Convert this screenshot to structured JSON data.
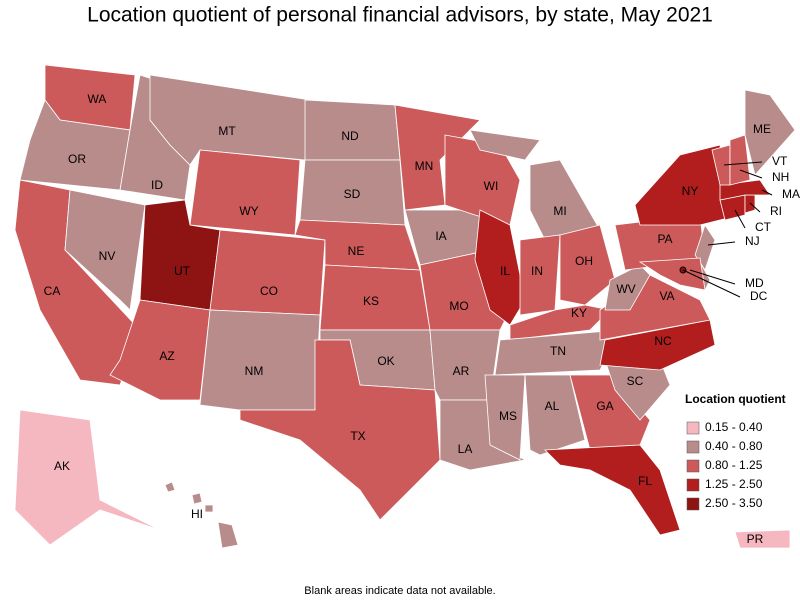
{
  "title": "Location quotient of personal financial advisors, by state, May 2021",
  "legend": {
    "title": "Location quotient",
    "items": [
      {
        "label": "0.15 - 0.40",
        "color": "#f5b7c0"
      },
      {
        "label": "0.40 - 0.80",
        "color": "#b98c8c"
      },
      {
        "label": "0.80 - 1.25",
        "color": "#cd5a5a"
      },
      {
        "label": "1.25 - 2.50",
        "color": "#b21e1e"
      },
      {
        "label": "2.50 - 3.50",
        "color": "#8e1414"
      }
    ]
  },
  "states": [
    {
      "abbr": "WA",
      "color": "#cd5a5a"
    },
    {
      "abbr": "OR",
      "color": "#b98c8c"
    },
    {
      "abbr": "CA",
      "color": "#cd5a5a"
    },
    {
      "abbr": "NV",
      "color": "#b98c8c"
    },
    {
      "abbr": "ID",
      "color": "#b98c8c"
    },
    {
      "abbr": "MT",
      "color": "#b98c8c"
    },
    {
      "abbr": "WY",
      "color": "#cd5a5a"
    },
    {
      "abbr": "UT",
      "color": "#8e1414"
    },
    {
      "abbr": "AZ",
      "color": "#cd5a5a"
    },
    {
      "abbr": "CO",
      "color": "#cd5a5a"
    },
    {
      "abbr": "NM",
      "color": "#b98c8c"
    },
    {
      "abbr": "ND",
      "color": "#b98c8c"
    },
    {
      "abbr": "SD",
      "color": "#b98c8c"
    },
    {
      "abbr": "NE",
      "color": "#cd5a5a"
    },
    {
      "abbr": "KS",
      "color": "#cd5a5a"
    },
    {
      "abbr": "OK",
      "color": "#b98c8c"
    },
    {
      "abbr": "TX",
      "color": "#cd5a5a"
    },
    {
      "abbr": "MN",
      "color": "#cd5a5a"
    },
    {
      "abbr": "IA",
      "color": "#b98c8c"
    },
    {
      "abbr": "MO",
      "color": "#cd5a5a"
    },
    {
      "abbr": "AR",
      "color": "#b98c8c"
    },
    {
      "abbr": "LA",
      "color": "#b98c8c"
    },
    {
      "abbr": "WI",
      "color": "#cd5a5a"
    },
    {
      "abbr": "IL",
      "color": "#b21e1e"
    },
    {
      "abbr": "MI",
      "color": "#b98c8c"
    },
    {
      "abbr": "IN",
      "color": "#cd5a5a"
    },
    {
      "abbr": "OH",
      "color": "#cd5a5a"
    },
    {
      "abbr": "KY",
      "color": "#cd5a5a"
    },
    {
      "abbr": "TN",
      "color": "#b98c8c"
    },
    {
      "abbr": "MS",
      "color": "#b98c8c"
    },
    {
      "abbr": "AL",
      "color": "#b98c8c"
    },
    {
      "abbr": "GA",
      "color": "#cd5a5a"
    },
    {
      "abbr": "FL",
      "color": "#b21e1e"
    },
    {
      "abbr": "SC",
      "color": "#b98c8c"
    },
    {
      "abbr": "NC",
      "color": "#b21e1e"
    },
    {
      "abbr": "VA",
      "color": "#cd5a5a"
    },
    {
      "abbr": "WV",
      "color": "#b98c8c"
    },
    {
      "abbr": "PA",
      "color": "#cd5a5a"
    },
    {
      "abbr": "NY",
      "color": "#b21e1e"
    },
    {
      "abbr": "NJ",
      "color": "#b98c8c"
    },
    {
      "color": "#b98c8c"
    },
    {
      "abbr": "MD",
      "color": "#cd5a5a"
    },
    {
      "abbr": "DC",
      "color": "#8e1414"
    },
    {
      "abbr": "CT",
      "color": "#b21e1e"
    },
    {
      "abbr": "RI",
      "color": "#b21e1e"
    },
    {
      "abbr": "MA",
      "color": "#b21e1e"
    },
    {
      "abbr": "VT",
      "color": "#cd5a5a"
    },
    {
      "abbr": "NH",
      "color": "#cd5a5a"
    },
    {
      "abbr": "ME",
      "color": "#b98c8c"
    },
    {
      "abbr": "AK",
      "color": "#f5b7c0"
    },
    {
      "abbr": "HI",
      "color": "#b98c8c"
    },
    {
      "abbr": "PR",
      "color": "#f5b7c0"
    }
  ],
  "footnote": "Blank areas indicate data not available."
}
